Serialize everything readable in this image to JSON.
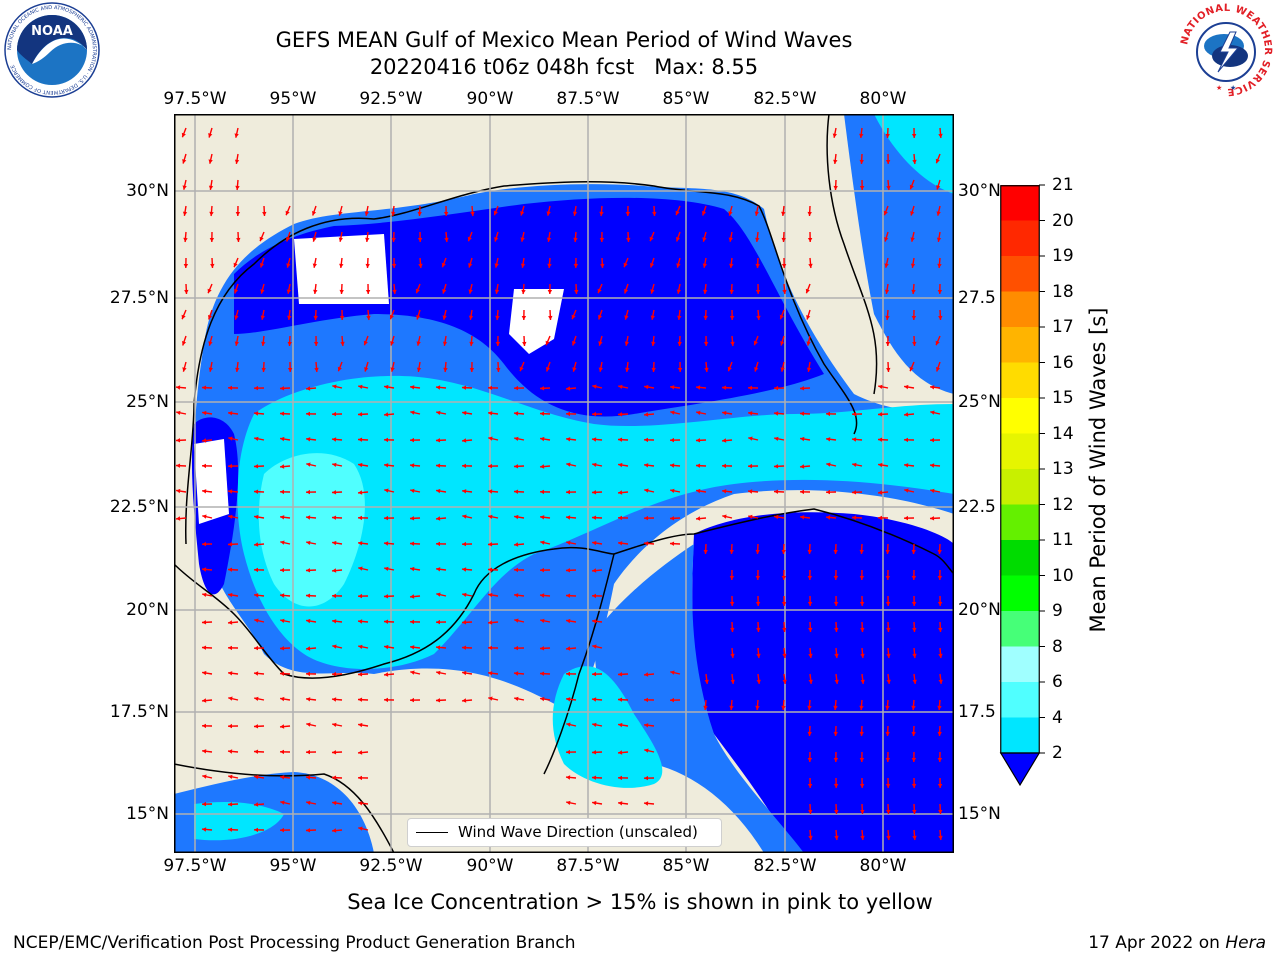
{
  "title": {
    "line1": "GEFS MEAN Gulf of Mexico Mean Period of Wind Waves",
    "line2": "20220416 t06z 048h fcst   Max: 8.55"
  },
  "map": {
    "lon_ticks": [
      "97.5°W",
      "95°W",
      "92.5°W",
      "90°W",
      "87.5°W",
      "85°W",
      "82.5°W",
      "80°W"
    ],
    "lat_ticks": [
      "30°N",
      "27.5°N",
      "25°N",
      "22.5°N",
      "20°N",
      "17.5°N",
      "15°N"
    ],
    "lat_ticks_right": [
      "30°N",
      "27.5",
      "25°N",
      "22.5",
      "20°N",
      "17.5",
      "15°N"
    ],
    "lon_range": [
      -98.1,
      -78.3
    ],
    "lat_range": [
      14.0,
      31.8
    ],
    "land_color": "#efecdc",
    "arrow_color": "#ff0000",
    "legend_label": "Wind Wave Direction (unscaled)"
  },
  "colorbar": {
    "title": "Mean Period of Wind Waves [s]",
    "labels": [
      "2",
      "4",
      "6",
      "8",
      "9",
      "10",
      "11",
      "12",
      "13",
      "14",
      "15",
      "16",
      "17",
      "18",
      "19",
      "20",
      "21"
    ],
    "colors": [
      "#0000ff",
      "#1e78ff",
      "#00e6ff",
      "#50ffff",
      "#a0ffff",
      "#46ff78",
      "#00ff00",
      "#00dc00",
      "#64f000",
      "#c8f000",
      "#e6f500",
      "#ffff00",
      "#ffdc00",
      "#ffb400",
      "#ff8c00",
      "#ff5000",
      "#ff2800",
      "#ff0000"
    ],
    "extend": "min"
  },
  "logos": {
    "noaa_text": "NOAA",
    "noaa_ring": "NATIONAL OCEANIC AND ATMOSPHERIC ADMINISTRATION · U.S. DEPARTMENT OF COMMERCE",
    "nws_ring": "NATIONAL WEATHER SERVICE"
  },
  "footer": {
    "note": "Sea Ice Concentration > 15% is shown in pink to yellow",
    "credit": "NCEP/EMC/Verification Post Processing Product Generation Branch",
    "date": "17 Apr 2022 on ",
    "host": "Hera"
  }
}
